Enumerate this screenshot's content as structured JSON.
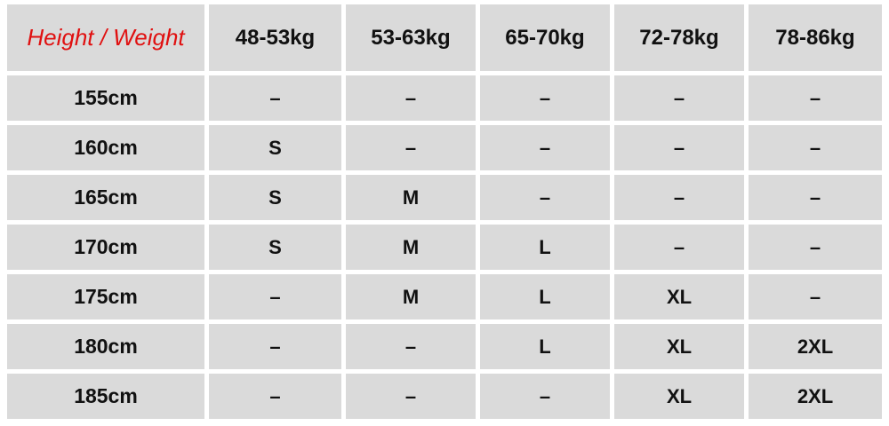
{
  "table": {
    "header": [
      "Height / Weight",
      "48-53kg",
      "53-63kg",
      "65-70kg",
      "72-78kg",
      "78-86kg"
    ],
    "rows": [
      [
        "155cm",
        "–",
        "–",
        "–",
        "–",
        "–"
      ],
      [
        "160cm",
        "S",
        "–",
        "–",
        "–",
        "–"
      ],
      [
        "165cm",
        "S",
        "M",
        "–",
        "–",
        "–"
      ],
      [
        "170cm",
        "S",
        "M",
        "L",
        "–",
        "–"
      ],
      [
        "175cm",
        "–",
        "M",
        "L",
        "XL",
        "–"
      ],
      [
        "180cm",
        "–",
        "–",
        "L",
        "XL",
        "2XL"
      ],
      [
        "185cm",
        "–",
        "–",
        "–",
        "XL",
        "2XL"
      ]
    ]
  }
}
